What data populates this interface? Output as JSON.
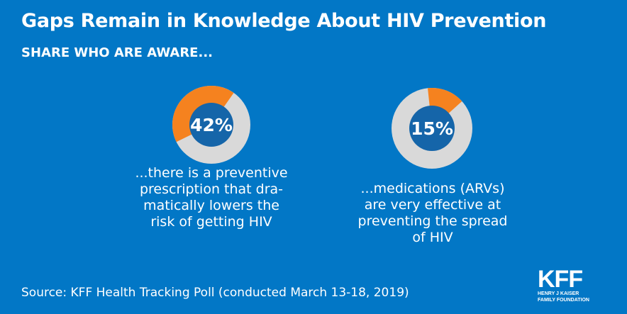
{
  "title": "Gaps Remain in Knowledge About HIV Prevention",
  "subtitle": "SHARE WHO ARE AWARE...",
  "source": "Source: KFF Health Tracking Poll (conducted March 13-18, 2019)",
  "logo": {
    "text": "KFF",
    "line1": "HENRY J KAISER",
    "line2": "FAMILY FOUNDATION"
  },
  "colors": {
    "background": "#0277c6",
    "aware": "#f5821f",
    "remainder": "#d9d9d9",
    "center": "#1565a9"
  },
  "chart_data": [
    {
      "type": "pie",
      "variant": "donut",
      "value": 42,
      "label": "42%",
      "caption": "...there is a preventive prescription that dramatically lowers the risk of getting HIV",
      "caption_lines": [
        "...there is a preventive",
        "prescription that dra-",
        "matically lowers the",
        "risk of getting HIV"
      ]
    },
    {
      "type": "pie",
      "variant": "donut",
      "value": 15,
      "label": "15%",
      "caption": "...medications (ARVs) are very effective at preventing the spread of HIV",
      "caption_lines": [
        "...medications (ARVs)",
        "are very effective at",
        "preventing the spread",
        "of HIV"
      ]
    }
  ]
}
